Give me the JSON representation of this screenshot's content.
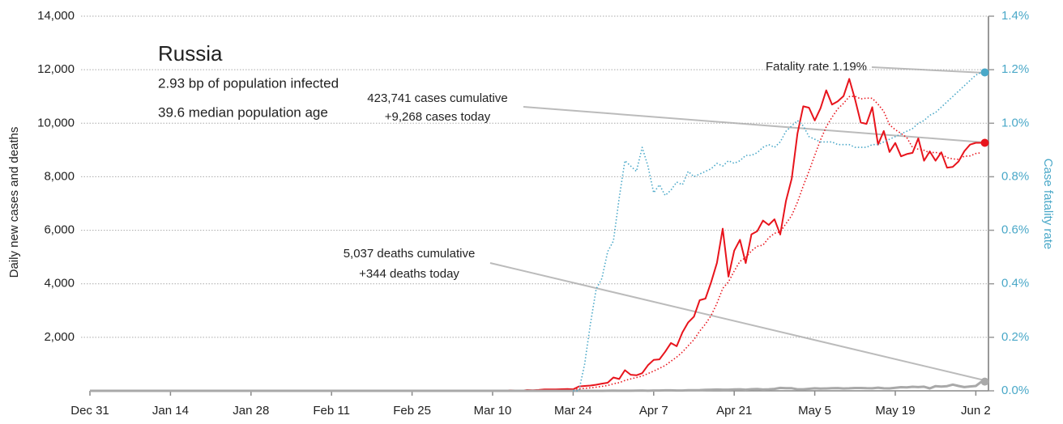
{
  "chart_data": {
    "type": "line",
    "title": "Russia",
    "notes": [
      "2.93 bp of population infected",
      "39.6 median population age"
    ],
    "annotations": [
      "Fatality rate 1.19%",
      "423,741 cases cumulative",
      "+9,268 cases today",
      "5,037 deaths cumulative",
      "+344 deaths today"
    ],
    "ylabel": "Daily new cases and deaths",
    "y2label": "Case fatality rate",
    "categories": [
      "Dec 31",
      null,
      null,
      null,
      null,
      null,
      null,
      null,
      null,
      null,
      null,
      null,
      null,
      null,
      "Jan 14",
      null,
      null,
      null,
      null,
      null,
      null,
      null,
      null,
      null,
      null,
      null,
      null,
      null,
      "Jan 28",
      null,
      null,
      null,
      null,
      null,
      null,
      null,
      null,
      null,
      null,
      null,
      null,
      null,
      "Feb 11",
      null,
      null,
      null,
      null,
      null,
      null,
      null,
      null,
      null,
      null,
      null,
      null,
      null,
      "Feb 25",
      null,
      null,
      null,
      null,
      null,
      null,
      null,
      null,
      null,
      null,
      null,
      null,
      null,
      "Mar 10",
      null,
      null,
      null,
      null,
      null,
      null,
      null,
      null,
      null,
      null,
      null,
      null,
      null,
      "Mar 24",
      null,
      null,
      null,
      null,
      null,
      null,
      null,
      null,
      null,
      null,
      null,
      null,
      null,
      "Apr 7",
      null,
      null,
      null,
      null,
      null,
      null,
      null,
      null,
      null,
      null,
      null,
      null,
      null,
      "Apr 21",
      null,
      null,
      null,
      null,
      null,
      null,
      null,
      null,
      null,
      null,
      null,
      null,
      null,
      "May 5",
      null,
      null,
      null,
      null,
      null,
      null,
      null,
      null,
      null,
      null,
      null,
      null,
      null,
      "May 19",
      null,
      null,
      null,
      null,
      null,
      null,
      null,
      null,
      null,
      null,
      null,
      null,
      null,
      "Jun 2",
      null
    ],
    "ylim": [
      0,
      14000
    ],
    "yticks": [
      {
        "value": 2000,
        "label": "2,000"
      },
      {
        "value": 4000,
        "label": "4,000"
      },
      {
        "value": 6000,
        "label": "6,000"
      },
      {
        "value": 8000,
        "label": "8,000"
      },
      {
        "value": 10000,
        "label": "10,000"
      },
      {
        "value": 12000,
        "label": "12,000"
      },
      {
        "value": 14000,
        "label": "14,000"
      }
    ],
    "y2lim": [
      0,
      1.4
    ],
    "y2ticks": [
      {
        "value": 0,
        "label": "0.0%"
      },
      {
        "value": 0.2,
        "label": "0.2%"
      },
      {
        "value": 0.4,
        "label": "0.4%"
      },
      {
        "value": 0.6,
        "label": "0.6%"
      },
      {
        "value": 0.8,
        "label": "0.8%"
      },
      {
        "value": 1.0,
        "label": "1.0%"
      },
      {
        "value": 1.2,
        "label": "1.2%"
      },
      {
        "value": 1.4,
        "label": "1.4%"
      }
    ],
    "grid": true,
    "series": [
      {
        "color": "#e8141c",
        "dash": "solid",
        "end_dot": true,
        "values": [
          0,
          0,
          0,
          0,
          0,
          0,
          0,
          0,
          0,
          0,
          0,
          0,
          0,
          0,
          0,
          0,
          0,
          0,
          0,
          0,
          0,
          0,
          0,
          0,
          0,
          0,
          0,
          0,
          0,
          0,
          0,
          2,
          0,
          0,
          0,
          0,
          0,
          0,
          0,
          0,
          0,
          0,
          0,
          0,
          0,
          0,
          0,
          0,
          0,
          0,
          0,
          0,
          0,
          0,
          0,
          0,
          0,
          0,
          0,
          0,
          0,
          0,
          1,
          0,
          1,
          1,
          6,
          0,
          5,
          0,
          3,
          8,
          6,
          17,
          14,
          4,
          30,
          21,
          33,
          52,
          54,
          53,
          61,
          71,
          57,
          163,
          182,
          196,
          228,
          270,
          302,
          500,
          440,
          771,
          601,
          582,
          658,
          954,
          1154,
          1175,
          1459,
          1786,
          1667,
          2186,
          2558,
          2774,
          3388,
          3448,
          4070,
          4785,
          6060,
          4268,
          5236,
          5642,
          4774,
          5849,
          5966,
          6361,
          6198,
          6411,
          5841,
          7099,
          7933,
          9623,
          10633,
          10581,
          10102,
          10559,
          11231,
          10699,
          10817,
          11012,
          11656,
          10899,
          10028,
          9974,
          10598,
          9200,
          9709,
          8926,
          9263,
          8764,
          8849,
          8894,
          9434,
          8599,
          8946,
          8600,
          8915,
          8338,
          8371,
          8572,
          8952,
          9200,
          9268,
          9268
        ]
      },
      {
        "color": "#e8141c",
        "dash": "dotted",
        "end_dot": false,
        "values": [
          null,
          null,
          null,
          null,
          null,
          null,
          null,
          null,
          null,
          null,
          null,
          null,
          null,
          null,
          null,
          null,
          null,
          null,
          null,
          null,
          null,
          null,
          null,
          null,
          null,
          null,
          null,
          null,
          null,
          null,
          null,
          null,
          null,
          null,
          null,
          null,
          null,
          null,
          null,
          null,
          null,
          null,
          null,
          null,
          null,
          null,
          null,
          null,
          null,
          null,
          null,
          null,
          null,
          null,
          null,
          null,
          null,
          null,
          null,
          null,
          null,
          null,
          0,
          0,
          0,
          1,
          1,
          2,
          2,
          2,
          2,
          3,
          4,
          6,
          8,
          8,
          12,
          14,
          18,
          25,
          30,
          35,
          44,
          53,
          58,
          73,
          92,
          112,
          137,
          167,
          200,
          263,
          304,
          387,
          445,
          495,
          550,
          644,
          737,
          842,
          945,
          1107,
          1260,
          1447,
          1684,
          1915,
          2231,
          2496,
          2822,
          3268,
          3826,
          4070,
          4476,
          4842,
          4977,
          5231,
          5400,
          5443,
          5718,
          5886,
          5943,
          6246,
          6556,
          7051,
          7657,
          8210,
          8802,
          9376,
          9866,
          10224,
          10539,
          10740,
          10993,
          11010,
          10906,
          10941,
          10931,
          10710,
          10441,
          9939,
          9757,
          9620,
          9463,
          9092,
          9029,
          8990,
          8892,
          8910,
          8853,
          8715,
          8667,
          8651,
          8766,
          8778,
          8869,
          8900
        ]
      },
      {
        "color": "#a9a9a9",
        "dash": "solid",
        "end_dot": true,
        "values": [
          0,
          0,
          0,
          0,
          0,
          0,
          0,
          0,
          0,
          0,
          0,
          0,
          0,
          0,
          0,
          0,
          0,
          0,
          0,
          0,
          0,
          0,
          0,
          0,
          0,
          0,
          0,
          0,
          0,
          0,
          0,
          0,
          0,
          0,
          0,
          0,
          0,
          0,
          0,
          0,
          0,
          0,
          0,
          0,
          0,
          0,
          0,
          0,
          0,
          0,
          0,
          0,
          0,
          0,
          0,
          0,
          0,
          0,
          0,
          0,
          0,
          0,
          0,
          0,
          0,
          0,
          0,
          0,
          0,
          0,
          0,
          0,
          0,
          0,
          0,
          0,
          0,
          0,
          0,
          1,
          0,
          0,
          0,
          0,
          0,
          1,
          0,
          1,
          1,
          0,
          4,
          8,
          2,
          4,
          4,
          9,
          13,
          2,
          11,
          13,
          18,
          18,
          12,
          13,
          22,
          24,
          28,
          36,
          41,
          48,
          42,
          43,
          51,
          57,
          42,
          60,
          66,
          47,
          57,
          72,
          108,
          101,
          96,
          57,
          58,
          76,
          95,
          86,
          88,
          98,
          104,
          88,
          94,
          107,
          107,
          96,
          93,
          119,
          94,
          91,
          115,
          135,
          127,
          150,
          139,
          153,
          92,
          174,
          161,
          174,
          232,
          181,
          138,
          162,
          182,
          344
        ]
      },
      {
        "color": "#4aa8c8",
        "dash": "dotted",
        "end_dot": true,
        "axis": "y2",
        "values": [
          null,
          null,
          null,
          null,
          null,
          null,
          null,
          null,
          null,
          null,
          null,
          null,
          null,
          null,
          null,
          null,
          null,
          null,
          null,
          null,
          null,
          null,
          null,
          null,
          null,
          null,
          null,
          null,
          null,
          null,
          null,
          null,
          null,
          null,
          null,
          null,
          null,
          null,
          null,
          null,
          null,
          null,
          null,
          null,
          null,
          null,
          null,
          null,
          null,
          null,
          null,
          null,
          null,
          null,
          null,
          null,
          null,
          null,
          null,
          null,
          null,
          null,
          null,
          null,
          null,
          null,
          null,
          null,
          null,
          null,
          null,
          null,
          null,
          null,
          null,
          null,
          null,
          null,
          null,
          null,
          null,
          null,
          null,
          null,
          0,
          0,
          0.1,
          0.25,
          0.38,
          0.42,
          0.52,
          0.56,
          0.72,
          0.86,
          0.84,
          0.82,
          0.91,
          0.84,
          0.74,
          0.77,
          0.73,
          0.75,
          0.78,
          0.77,
          0.82,
          0.8,
          0.81,
          0.82,
          0.83,
          0.85,
          0.84,
          0.86,
          0.85,
          0.86,
          0.88,
          0.88,
          0.89,
          0.91,
          0.92,
          0.91,
          0.93,
          0.97,
          0.99,
          1.01,
          0.99,
          0.95,
          0.94,
          0.93,
          0.93,
          0.93,
          0.92,
          0.92,
          0.92,
          0.91,
          0.91,
          0.91,
          0.92,
          0.92,
          0.93,
          0.94,
          0.95,
          0.96,
          0.97,
          0.98,
          1.0,
          1.01,
          1.03,
          1.04,
          1.06,
          1.08,
          1.1,
          1.12,
          1.14,
          1.16,
          1.18,
          1.19
        ]
      }
    ]
  }
}
